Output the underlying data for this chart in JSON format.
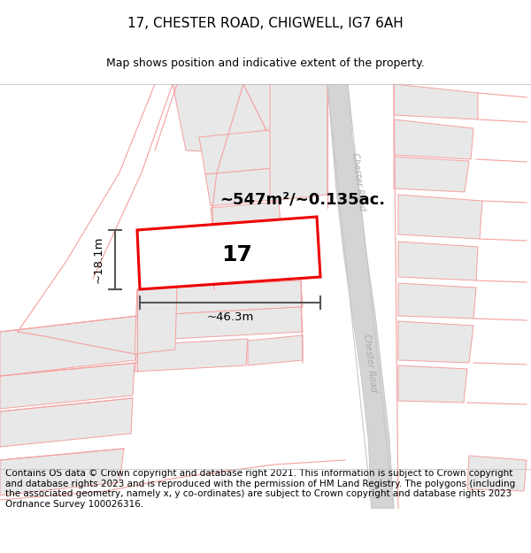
{
  "title": "17, CHESTER ROAD, CHIGWELL, IG7 6AH",
  "subtitle": "Map shows position and indicative extent of the property.",
  "footer": "Contains OS data © Crown copyright and database right 2021. This information is subject to Crown copyright and database rights 2023 and is reproduced with the permission of HM Land Registry. The polygons (including the associated geometry, namely x, y co-ordinates) are subject to Crown copyright and database rights 2023 Ordnance Survey 100026316.",
  "area_label": "~547m²/~0.135ac.",
  "width_label": "~46.3m",
  "height_label": "~18.1m",
  "plot_number": "17",
  "bg_color": "#ffffff",
  "plot_outline_color": "#ee0000",
  "plot_fill_color": "#ffffff",
  "parcel_fill": "#e8e8e8",
  "parcel_outline": "#f5a0a0",
  "road_fill": "#d4d4d4",
  "road_outline": "#c0c0c0",
  "dim_line_color": "#555555",
  "road_label_color": "#aaaaaa",
  "title_fontsize": 11,
  "subtitle_fontsize": 9,
  "footer_fontsize": 7.5
}
